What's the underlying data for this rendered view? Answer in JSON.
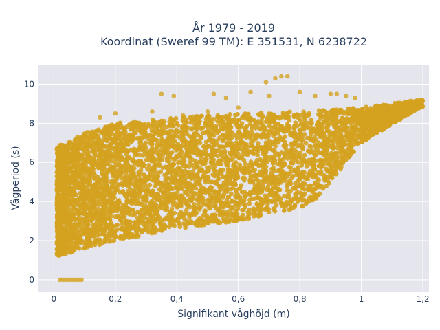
{
  "chart_data": {
    "type": "scatter",
    "title_lines": [
      "År 1979 - 2019",
      "Koordinat (Sweref 99 TM): E 351531, N 6238722"
    ],
    "xlabel": "Signifikant våghöjd (m)",
    "ylabel": "Vågperiod (s)",
    "xlim": [
      -0.05,
      1.22
    ],
    "ylim": [
      -0.6,
      11.0
    ],
    "xticks": [
      0,
      0.2,
      0.4,
      0.6,
      0.8,
      1,
      1.2
    ],
    "xtick_labels": [
      "0",
      "0,2",
      "0,4",
      "0,6",
      "0,8",
      "1",
      "1,2"
    ],
    "yticks": [
      0,
      2,
      4,
      6,
      8,
      10
    ],
    "ytick_labels": [
      "0",
      "2",
      "4",
      "6",
      "8",
      "10"
    ],
    "grid": true,
    "legend": "none",
    "colors": {
      "marker": "#d4a21f",
      "plot_bg": "#e5e5ee",
      "grid": "#ffffff",
      "text": "#2a3f5f"
    },
    "series": [
      {
        "marker_color": "#d4a21f",
        "density_bands": [
          {
            "x": [
              0.01,
              1.2
            ],
            "y_low_at_x": [
              [
                0.01,
                1.2
              ],
              [
                0.2,
                2.0
              ],
              [
                0.4,
                2.6
              ],
              [
                0.6,
                3.0
              ],
              [
                0.8,
                3.7
              ],
              [
                0.85,
                4.0
              ],
              [
                1.0,
                7.0
              ],
              [
                1.19,
                8.8
              ]
            ],
            "y_high_at_x": [
              [
                0.01,
                6.8
              ],
              [
                0.1,
                7.5
              ],
              [
                0.2,
                8.0
              ],
              [
                0.4,
                8.3
              ],
              [
                0.6,
                8.5
              ],
              [
                0.8,
                8.6
              ],
              [
                1.0,
                8.8
              ],
              [
                1.19,
                9.2
              ]
            ]
          }
        ],
        "points": [
          [
            0.02,
            0.0
          ],
          [
            0.03,
            0.0
          ],
          [
            0.04,
            0.0
          ],
          [
            0.05,
            0.0
          ],
          [
            0.06,
            0.0
          ],
          [
            0.07,
            0.0
          ],
          [
            0.08,
            0.0
          ],
          [
            0.09,
            0.0
          ],
          [
            0.35,
            9.5
          ],
          [
            0.39,
            9.4
          ],
          [
            0.52,
            9.5
          ],
          [
            0.56,
            9.3
          ],
          [
            0.64,
            9.6
          ],
          [
            0.69,
            10.1
          ],
          [
            0.7,
            9.4
          ],
          [
            0.72,
            10.3
          ],
          [
            0.74,
            10.4
          ],
          [
            0.76,
            10.4
          ],
          [
            0.8,
            9.6
          ],
          [
            0.85,
            9.4
          ],
          [
            0.9,
            9.5
          ],
          [
            0.92,
            9.5
          ],
          [
            0.95,
            9.4
          ],
          [
            0.98,
            9.3
          ],
          [
            1.1,
            8.7
          ],
          [
            1.15,
            8.8
          ],
          [
            1.18,
            8.9
          ],
          [
            1.19,
            9.2
          ],
          [
            0.5,
            8.6
          ],
          [
            0.6,
            8.8
          ],
          [
            0.42,
            8.4
          ],
          [
            0.2,
            8.5
          ],
          [
            0.15,
            8.3
          ],
          [
            0.32,
            8.6
          ]
        ]
      }
    ]
  }
}
